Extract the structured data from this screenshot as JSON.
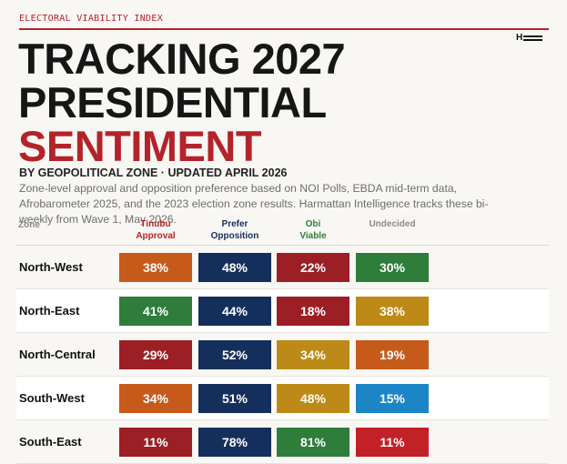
{
  "header": {
    "kicker": "ELECTORAL VIABILITY INDEX",
    "title_line1": "TRACKING 2027",
    "title_line2": "PRESIDENTIAL",
    "title_line3": "SENTIMENT",
    "subhead": "BY GEOPOLITICAL ZONE  ·  UPDATED APRIL 2026",
    "description": "Zone-level approval and opposition preference based on NOI Polls, EBDA mid-term data, Afrobarometer 2025, and the 2023 election zone results. Harmattan Intelligence tracks these bi-weekly from Wave 1, May 2026.",
    "logo_letter": "H"
  },
  "colors": {
    "accent_red": "#b4232a",
    "orange": "#c65a1b",
    "navy": "#152f5c",
    "crimson": "#9b1f24",
    "green": "#2e7d3b",
    "mustard": "#bd8a17",
    "blue": "#1b85c6",
    "bright_red": "#c22128"
  },
  "chart_data": {
    "type": "table",
    "columns": [
      {
        "label": "Zone",
        "color": "#8a8a8a"
      },
      {
        "label": "Tinubu Approval",
        "line1": "Tinubu",
        "line2": "Approval",
        "color": "#b4232a"
      },
      {
        "label": "Prefer Opposition",
        "line1": "Prefer",
        "line2": "Opposition",
        "color": "#152f5c"
      },
      {
        "label": "Obi Viable",
        "line1": "Obi",
        "line2": "Viable",
        "color": "#2e7d3b"
      },
      {
        "label": "Undecided",
        "line1": "Undecided",
        "line2": "",
        "color": "#8a8a8a"
      }
    ],
    "rows": [
      {
        "zone": "North-West",
        "values": [
          "38%",
          "48%",
          "22%",
          "30%"
        ],
        "colors": [
          "#c65a1b",
          "#152f5c",
          "#9b1f24",
          "#2e7d3b"
        ]
      },
      {
        "zone": "North-East",
        "values": [
          "41%",
          "44%",
          "18%",
          "38%"
        ],
        "colors": [
          "#2e7d3b",
          "#152f5c",
          "#9b1f24",
          "#bd8a17"
        ]
      },
      {
        "zone": "North-Central",
        "values": [
          "29%",
          "52%",
          "34%",
          "19%"
        ],
        "colors": [
          "#9b1f24",
          "#152f5c",
          "#bd8a17",
          "#c65a1b"
        ]
      },
      {
        "zone": "South-West",
        "values": [
          "34%",
          "51%",
          "48%",
          "15%"
        ],
        "colors": [
          "#c65a1b",
          "#152f5c",
          "#bd8a17",
          "#1b85c6"
        ]
      },
      {
        "zone": "South-East",
        "values": [
          "11%",
          "78%",
          "81%",
          "11%"
        ],
        "colors": [
          "#9b1f24",
          "#152f5c",
          "#2e7d3b",
          "#c22128"
        ]
      }
    ]
  }
}
